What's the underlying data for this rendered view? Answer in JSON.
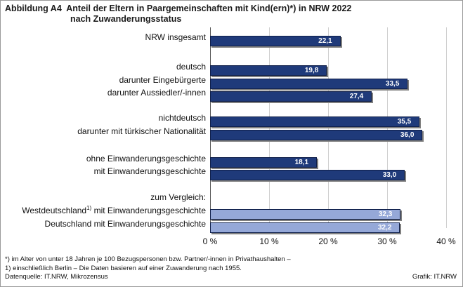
{
  "title": {
    "line1": "Abbildung A4  Anteil der Eltern in Paargemeinschaften mit Kind(ern)*) in NRW 2022",
    "line2": "nach Zuwanderungsstatus"
  },
  "colors": {
    "bar_dark": "#1f3a7a",
    "bar_light": "#95a8d8",
    "border": "#0f1f4a"
  },
  "chart_data": {
    "type": "bar",
    "orientation": "horizontal",
    "xlim": [
      0,
      40
    ],
    "ticks": [
      0,
      10,
      20,
      30,
      40
    ],
    "tick_labels": [
      "0 %",
      "10 %",
      "20 %",
      "30 %",
      "40 %"
    ],
    "grid": true,
    "categories": [
      "NRW insgesamt",
      "deutsch",
      "darunter Eingebürgerte",
      "darunter Aussiedler/-innen",
      "nichtdeutsch",
      "darunter mit türkischer Nationalität",
      "ohne Einwanderungsgeschichte",
      "mit Einwanderungsgeschichte",
      "Westdeutschland1) mit Einwanderungsgeschichte",
      "Deutschland mit Einwanderungsgeschichte"
    ],
    "values": [
      22.1,
      19.8,
      33.5,
      27.4,
      35.5,
      36.0,
      18.1,
      33.0,
      32.3,
      32.2
    ],
    "value_labels": [
      "22,1",
      "19,8",
      "33,5",
      "27,4",
      "35,5",
      "36,0",
      "18,1",
      "33,0",
      "32,3",
      "32,2"
    ],
    "comparison_heading": "zum Vergleich:"
  },
  "rows": [
    {
      "label": "NRW insgesamt"
    },
    {
      "label": "deutsch"
    },
    {
      "label": "darunter Eingebürgerte"
    },
    {
      "label": "darunter Aussiedler/-innen"
    },
    {
      "label": "nichtdeutsch"
    },
    {
      "label": "darunter mit türkischer Nationalität"
    },
    {
      "label": "ohne Einwanderungsgeschichte"
    },
    {
      "label": "mit Einwanderungsgeschichte"
    },
    {
      "label_pre": "Westdeutschland",
      "label_sup": "1)",
      "label_post": " mit Einwanderungsgeschichte"
    },
    {
      "label": "Deutschland mit Einwanderungsgeschichte"
    }
  ],
  "footnotes": {
    "note1": "*) im Alter von unter 18 Jahren je 100 Bezugspersonen bzw. Partner/-innen in Privathaushalten –",
    "note2": "1) einschließlich Berlin – Die Daten basieren auf einer Zuwanderung nach 1955.",
    "source": "Datenquelle:  IT.NRW,  Mikrozensus",
    "credit": "Grafik: IT.NRW"
  }
}
